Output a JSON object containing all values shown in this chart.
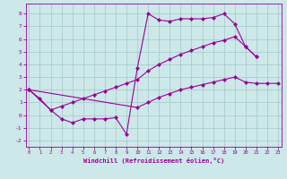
{
  "xlabel": "Windchill (Refroidissement éolien,°C)",
  "bg_color": "#cce8e8",
  "grid_color": "#aacccc",
  "line_color": "#990099",
  "curve_upper_x": [
    0,
    1,
    2,
    3,
    4,
    5,
    6,
    7,
    8,
    9,
    10,
    11,
    12,
    13,
    14,
    15,
    16,
    17,
    18,
    19,
    20,
    21
  ],
  "curve_upper_y": [
    2.0,
    1.3,
    0.4,
    -0.3,
    -0.6,
    -0.3,
    -0.3,
    -0.3,
    -0.2,
    -1.5,
    3.7,
    8.0,
    7.5,
    7.4,
    7.6,
    7.6,
    7.6,
    7.7,
    8.0,
    7.2,
    5.4,
    4.6
  ],
  "curve_mid_x": [
    0,
    2,
    3,
    4,
    5,
    6,
    7,
    8,
    9,
    10,
    11,
    12,
    13,
    14,
    15,
    16,
    17,
    18,
    19,
    20,
    21
  ],
  "curve_mid_y": [
    2.0,
    0.4,
    0.7,
    1.0,
    1.3,
    1.6,
    1.9,
    2.2,
    2.5,
    2.8,
    3.5,
    4.0,
    4.4,
    4.8,
    5.1,
    5.4,
    5.7,
    5.9,
    6.2,
    5.4,
    4.6
  ],
  "curve_lower_x": [
    0,
    10,
    11,
    12,
    13,
    14,
    15,
    16,
    17,
    18,
    19,
    20,
    21,
    22,
    23
  ],
  "curve_lower_y": [
    2.0,
    0.6,
    1.0,
    1.4,
    1.7,
    2.0,
    2.2,
    2.4,
    2.6,
    2.8,
    3.0,
    2.6,
    2.5,
    2.5,
    2.5
  ],
  "xlim": [
    -0.3,
    23.3
  ],
  "ylim": [
    -2.5,
    8.8
  ],
  "yticks": [
    -2,
    -1,
    0,
    1,
    2,
    3,
    4,
    5,
    6,
    7,
    8
  ],
  "xticks": [
    0,
    1,
    2,
    3,
    4,
    5,
    6,
    7,
    8,
    9,
    10,
    11,
    12,
    13,
    14,
    15,
    16,
    17,
    18,
    19,
    20,
    21,
    22,
    23
  ]
}
